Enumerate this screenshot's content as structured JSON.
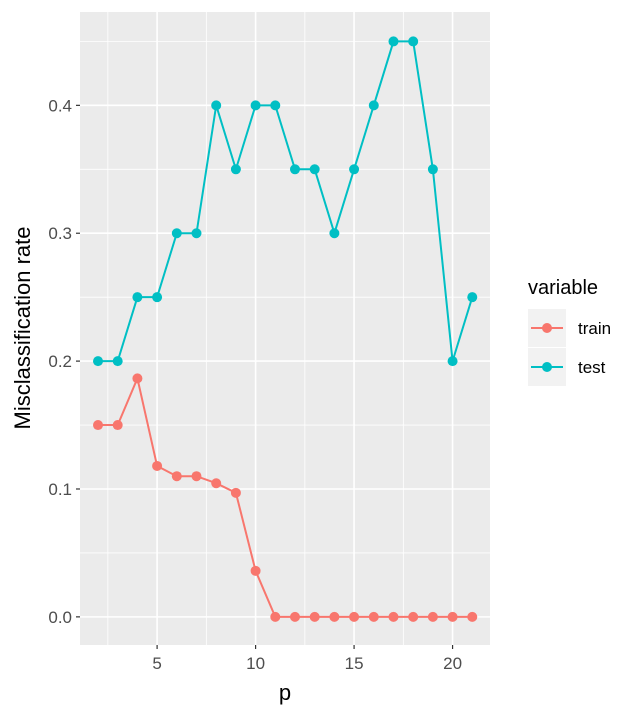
{
  "chart_data": {
    "type": "line",
    "title": "",
    "xlabel": "p",
    "ylabel": "Misclassification rate",
    "xlim": [
      1.086,
      21.9
    ],
    "ylim": [
      -0.022,
      0.473
    ],
    "xticks": [
      5,
      10,
      15,
      20
    ],
    "yticks": [
      0.0,
      0.1,
      0.2,
      0.3,
      0.4
    ],
    "ytick_labels": [
      "0.0",
      "0.1",
      "0.2",
      "0.3",
      "0.4"
    ],
    "grid": true,
    "legend": {
      "title": "variable",
      "placement": "right"
    },
    "x": [
      2,
      3,
      4,
      5,
      6,
      7,
      8,
      9,
      10,
      11,
      12,
      13,
      14,
      15,
      16,
      17,
      18,
      19,
      20,
      21
    ],
    "series": [
      {
        "name": "train",
        "color": "#F8766D",
        "values": [
          0.15,
          0.15,
          0.1865,
          0.118,
          0.11,
          0.11,
          0.1045,
          0.097,
          0.036,
          0,
          0,
          0,
          0,
          0,
          0,
          0,
          0,
          0,
          0,
          0
        ]
      },
      {
        "name": "test",
        "color": "#00BFC4",
        "values": [
          0.2,
          0.2,
          0.25,
          0.25,
          0.3,
          0.3,
          0.4,
          0.35,
          0.4,
          0.4,
          0.35,
          0.35,
          0.3,
          0.35,
          0.4,
          0.45,
          0.45,
          0.35,
          0.2,
          0.25
        ]
      }
    ]
  }
}
